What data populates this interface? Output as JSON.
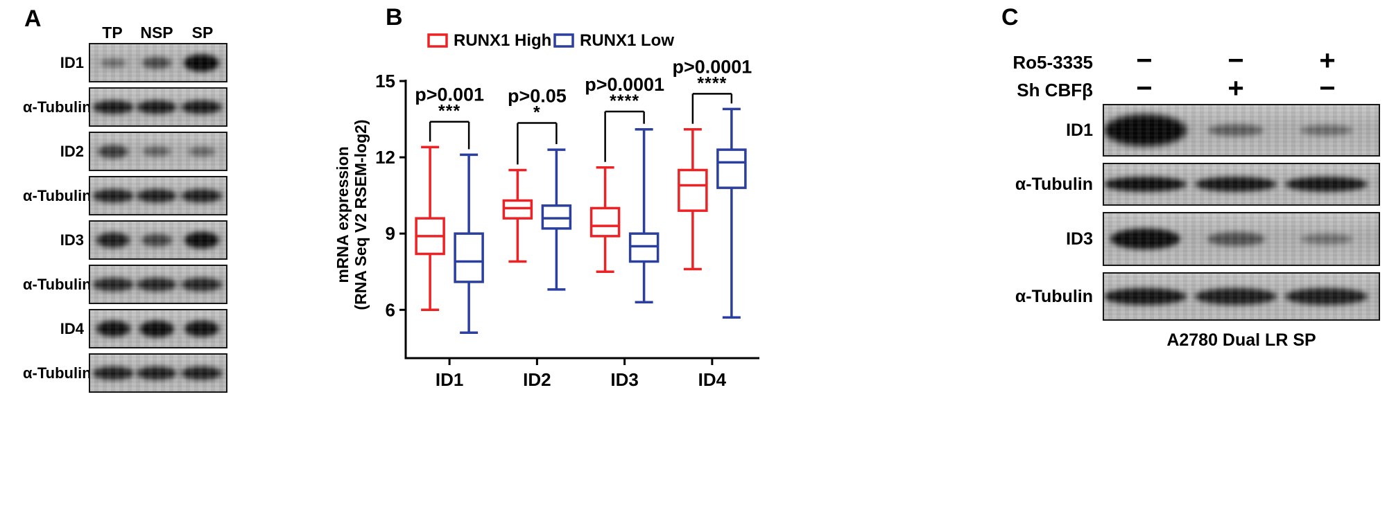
{
  "figure": {
    "panel_a": {
      "label": "A",
      "col_headers": [
        "TP",
        "NSP",
        "SP"
      ],
      "rows": [
        {
          "label": "ID1",
          "bands": [
            0.3,
            0.55,
            1.0
          ]
        },
        {
          "label": "α-Tubulin",
          "bands": [
            0.88,
            0.88,
            0.88
          ]
        },
        {
          "label": "ID2",
          "bands": [
            0.65,
            0.4,
            0.35
          ]
        },
        {
          "label": "α-Tubulin",
          "bands": [
            0.85,
            0.85,
            0.85
          ]
        },
        {
          "label": "ID3",
          "bands": [
            0.85,
            0.6,
            0.97
          ]
        },
        {
          "label": "α-Tubulin",
          "bands": [
            0.8,
            0.8,
            0.8
          ]
        },
        {
          "label": "ID4",
          "bands": [
            0.93,
            0.95,
            0.93
          ]
        },
        {
          "label": "α-Tubulin",
          "bands": [
            0.85,
            0.85,
            0.85
          ]
        }
      ]
    },
    "panel_b": {
      "label": "B"
    },
    "panel_c": {
      "label": "C",
      "treatment_rows": [
        {
          "label": "Ro5-3335",
          "signs": [
            "−",
            "−",
            "+"
          ]
        },
        {
          "label": "Sh CBFβ",
          "signs": [
            "−",
            "+",
            "−"
          ]
        }
      ],
      "rows": [
        {
          "label": "ID1",
          "bands": [
            1.0,
            0.4,
            0.3
          ]
        },
        {
          "label": "α-Tubulin",
          "bands": [
            0.95,
            0.9,
            0.9
          ]
        },
        {
          "label": "ID3",
          "bands": [
            0.95,
            0.5,
            0.28
          ]
        },
        {
          "label": "α-Tubulin",
          "bands": [
            0.9,
            0.85,
            0.85
          ]
        }
      ],
      "caption": "A2780 Dual LR SP"
    }
  },
  "chart_data": {
    "type": "box",
    "title": "",
    "ylabel_line1": "mRNA expression",
    "ylabel_line2": "(RNA Seq V2 RSEM-log2)",
    "yticks": [
      6,
      9,
      12,
      15
    ],
    "ylim": [
      4.1,
      15.0
    ],
    "categories": [
      "ID1",
      "ID2",
      "ID3",
      "ID4"
    ],
    "legend": [
      {
        "name": "RUNX1 High",
        "color": "#ee2224"
      },
      {
        "name": "RUNX1 Low",
        "color": "#2b3f9f"
      }
    ],
    "series": [
      {
        "name": "RUNX1 High",
        "color": "#ee2224",
        "boxes": [
          {
            "whisker_low": 6.0,
            "q1": 8.2,
            "median": 8.9,
            "q3": 9.6,
            "whisker_high": 12.4
          },
          {
            "whisker_low": 7.9,
            "q1": 9.6,
            "median": 10.0,
            "q3": 10.3,
            "whisker_high": 11.5
          },
          {
            "whisker_low": 7.5,
            "q1": 8.9,
            "median": 9.3,
            "q3": 10.0,
            "whisker_high": 11.6
          },
          {
            "whisker_low": 7.6,
            "q1": 9.9,
            "median": 10.9,
            "q3": 11.5,
            "whisker_high": 13.1
          }
        ]
      },
      {
        "name": "RUNX1 Low",
        "color": "#2b3f9f",
        "boxes": [
          {
            "whisker_low": 5.1,
            "q1": 7.1,
            "median": 7.9,
            "q3": 9.0,
            "whisker_high": 12.1
          },
          {
            "whisker_low": 6.8,
            "q1": 9.2,
            "median": 9.6,
            "q3": 10.1,
            "whisker_high": 12.3
          },
          {
            "whisker_low": 6.3,
            "q1": 7.9,
            "median": 8.5,
            "q3": 9.0,
            "whisker_high": 13.1
          },
          {
            "whisker_low": 5.7,
            "q1": 10.8,
            "median": 11.8,
            "q3": 12.3,
            "whisker_high": 13.9
          }
        ]
      }
    ],
    "annotations": [
      {
        "category": "ID1",
        "p": "p>0.001",
        "stars": "***",
        "bracket_value": 13.4
      },
      {
        "category": "ID2",
        "p": "p>0.05",
        "stars": "*",
        "bracket_value": 13.35
      },
      {
        "category": "ID3",
        "p": "p>0.0001",
        "stars": "****",
        "bracket_value": 13.8
      },
      {
        "category": "ID4",
        "p": "p>0.0001",
        "stars": "****",
        "bracket_value": 14.5
      }
    ]
  }
}
